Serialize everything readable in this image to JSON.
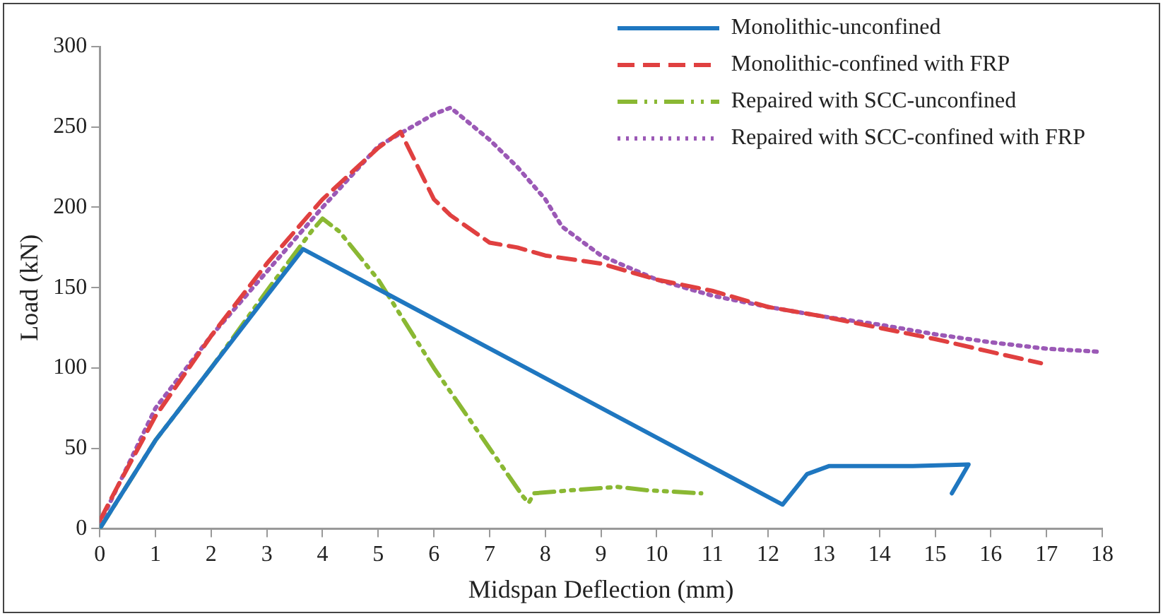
{
  "chart_data": {
    "type": "line",
    "xlabel": "Midspan Deflection (mm)",
    "ylabel": "Load (kN)",
    "xlim": [
      0,
      18
    ],
    "xticks": [
      0,
      1,
      2,
      3,
      4,
      5,
      6,
      7,
      8,
      9,
      10,
      11,
      12,
      13,
      14,
      15,
      16,
      17,
      18
    ],
    "ylim": [
      0,
      300
    ],
    "yticks": [
      0,
      50,
      100,
      150,
      200,
      250,
      300
    ],
    "grid": false,
    "legend": "top right",
    "marker": "none",
    "series": [
      {
        "name": "Monolithic-unconfined",
        "color": "#1f77c0",
        "line_style": "solid",
        "x": [
          0,
          1,
          2,
          3,
          3.65,
          12.26,
          12.7,
          13.1,
          14.6,
          15.6,
          15.45,
          15.3
        ],
        "values": [
          0,
          55,
          100,
          145,
          174,
          15,
          34,
          39,
          39,
          40,
          31,
          22
        ]
      },
      {
        "name": "Monolithic-confined with FRP",
        "color": "#e04040",
        "line_style": "dashed",
        "x": [
          0,
          0.3,
          1,
          2,
          3,
          4,
          5,
          5.4,
          5.5,
          6,
          6.3,
          7,
          7.5,
          8,
          9,
          10,
          11,
          12,
          13,
          14,
          15,
          16,
          16.9
        ],
        "values": [
          5,
          25,
          70,
          120,
          165,
          205,
          237,
          247,
          240,
          205,
          195,
          178,
          175,
          170,
          165,
          155,
          148,
          138,
          132,
          125,
          118,
          110,
          103
        ]
      },
      {
        "name": "Repaired with SCC-unconfined",
        "color": "#8ab833",
        "line_style": "dashdot",
        "x": [
          0,
          1,
          2,
          3,
          3.8,
          4,
          4.3,
          5,
          6,
          7,
          7.6,
          7.7,
          7.8,
          8.5,
          9.3,
          9.8,
          10.8
        ],
        "values": [
          0,
          55,
          100,
          148,
          185,
          193,
          185,
          155,
          100,
          50,
          20,
          16,
          22,
          24,
          26,
          24,
          22
        ]
      },
      {
        "name": "Repaired with SCC-confined with FRP",
        "color": "#9b59b6",
        "line_style": "dotted",
        "x": [
          0,
          1,
          2,
          3,
          4,
          5,
          6,
          6.3,
          7,
          7.5,
          8,
          8.3,
          9,
          10,
          11,
          12,
          13,
          14,
          15,
          16,
          17,
          18
        ],
        "values": [
          3,
          75,
          120,
          160,
          200,
          238,
          258,
          262,
          242,
          225,
          205,
          188,
          170,
          155,
          145,
          138,
          132,
          127,
          121,
          116,
          112,
          110
        ]
      }
    ]
  }
}
